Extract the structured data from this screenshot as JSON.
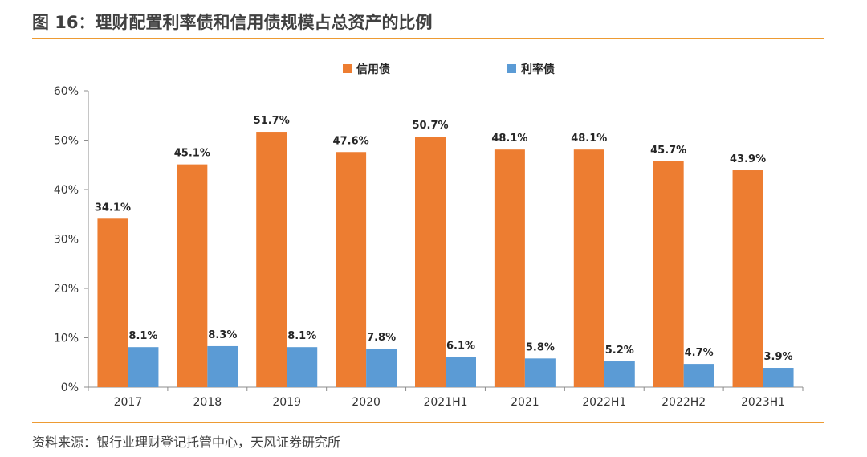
{
  "figure": {
    "title": "图 16：理财配置利率债和信用债规模占总资产的比例",
    "source": "资料来源：银行业理财登记托管中心，天风证券研究所",
    "accent_color": "#ED9B33"
  },
  "chart_data": {
    "type": "bar",
    "categories": [
      "2017",
      "2018",
      "2019",
      "2020",
      "2021H1",
      "2021",
      "2022H1",
      "2022H2",
      "2023H1"
    ],
    "series": [
      {
        "name": "信用债",
        "color": "#ED7D31",
        "values": [
          34.1,
          45.1,
          51.7,
          47.6,
          50.7,
          48.1,
          48.1,
          45.7,
          43.9
        ],
        "labels": [
          "34.1%",
          "45.1%",
          "51.7%",
          "47.6%",
          "50.7%",
          "48.1%",
          "48.1%",
          "45.7%",
          "43.9%"
        ]
      },
      {
        "name": "利率债",
        "color": "#5B9BD5",
        "values": [
          8.1,
          8.3,
          8.1,
          7.8,
          6.1,
          5.8,
          5.2,
          4.7,
          3.9
        ],
        "labels": [
          "8.1%",
          "8.3%",
          "8.1%",
          "7.8%",
          "6.1%",
          "5.8%",
          "5.2%",
          "4.7%",
          "3.9%"
        ]
      }
    ],
    "ylim": [
      0,
      60
    ],
    "yticks": [
      0,
      10,
      20,
      30,
      40,
      50,
      60
    ],
    "ytick_labels": [
      "0%",
      "10%",
      "20%",
      "30%",
      "40%",
      "50%",
      "60%"
    ],
    "grid": false,
    "legend": "top-center"
  }
}
